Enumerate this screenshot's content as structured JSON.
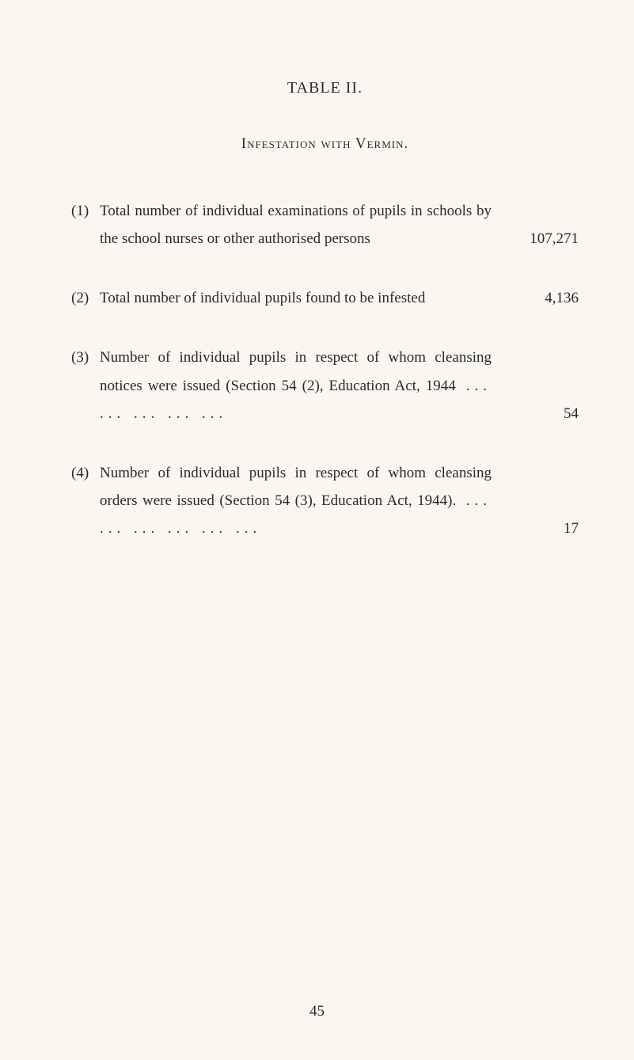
{
  "table_title": "TABLE II.",
  "subtitle": "Infestation with Vermin.",
  "items": [
    {
      "number": "(1)",
      "text": "Total number of individual examinations of pupils in schools by the school nurses or other authorised persons",
      "value": "107,271"
    },
    {
      "number": "(2)",
      "text": "Total number of individual pupils found to be infested",
      "value": "4,136"
    },
    {
      "number": "(3)",
      "text": "Number of individual pupils in respect of whom cleansing notices were issued (Section 54 (2), Education Act, 1944",
      "dots": "     ...        ...        ...        ...        ...",
      "value": "54"
    },
    {
      "number": "(4)",
      "text": "Number of individual pupils in respect of whom cleansing orders were issued (Section 54 (3), Education Act, 1944).",
      "dots": "          ...        ...        ...        ...        ...        ...",
      "value": "17"
    }
  ],
  "page_number": "45"
}
